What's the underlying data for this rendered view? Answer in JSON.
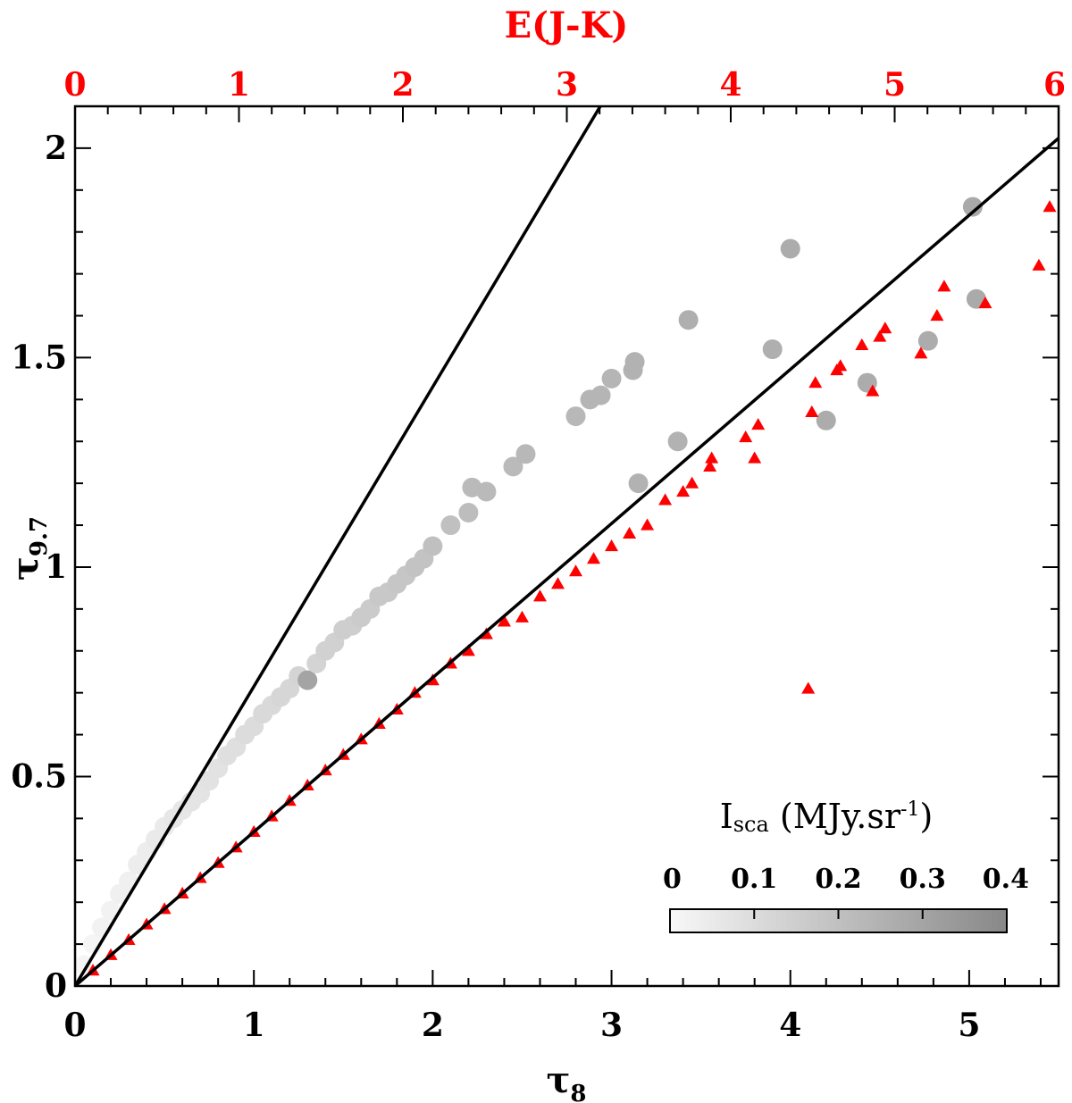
{
  "chart_data": {
    "type": "scatter",
    "title": "",
    "xlabel": {
      "main": "τ",
      "sub": "8"
    },
    "ylabel": {
      "main": "τ",
      "sub": "9.7"
    },
    "top_xlabel": "E(J-K)",
    "xlim": [
      0,
      5.5
    ],
    "ylim": [
      0,
      2.1
    ],
    "top_xlim": [
      0,
      6
    ],
    "x_ticks": [
      "0",
      "1",
      "2",
      "3",
      "4",
      "5"
    ],
    "y_ticks": [
      "0",
      "0.5",
      "1",
      "1.5",
      "2"
    ],
    "top_x_ticks": [
      "0",
      "1",
      "2",
      "3",
      "4",
      "5",
      "6"
    ],
    "colors": {
      "axis": "#000000",
      "top_axis": "#ff0000",
      "triangles": "#ff0000",
      "lines": "#000000"
    },
    "lines": [
      {
        "name": "steep-line",
        "slope": 0.715
      },
      {
        "name": "shallow-line",
        "slope": 0.368
      }
    ],
    "colorbar": {
      "title_main": "I",
      "title_sub": "sca",
      "title_unit_prefix": " (MJy.sr",
      "title_unit_sup": "-1",
      "title_unit_suffix": ")",
      "ticks": [
        "0",
        "0.1",
        "0.2",
        "0.3",
        "0.4"
      ],
      "range": [
        0,
        0.4
      ]
    },
    "series": [
      {
        "name": "grey circles (colored by Isca)",
        "marker": "circle",
        "points": [
          [
            0.05,
            0.05,
            0.01
          ],
          [
            0.1,
            0.1,
            0.01
          ],
          [
            0.15,
            0.14,
            0.02
          ],
          [
            0.2,
            0.18,
            0.02
          ],
          [
            0.25,
            0.22,
            0.03
          ],
          [
            0.3,
            0.25,
            0.03
          ],
          [
            0.35,
            0.29,
            0.04
          ],
          [
            0.4,
            0.32,
            0.04
          ],
          [
            0.45,
            0.35,
            0.05
          ],
          [
            0.5,
            0.38,
            0.05
          ],
          [
            0.55,
            0.4,
            0.06
          ],
          [
            0.6,
            0.42,
            0.06
          ],
          [
            0.65,
            0.44,
            0.07
          ],
          [
            0.7,
            0.46,
            0.07
          ],
          [
            0.75,
            0.49,
            0.08
          ],
          [
            0.8,
            0.52,
            0.08
          ],
          [
            0.85,
            0.55,
            0.09
          ],
          [
            0.9,
            0.57,
            0.09
          ],
          [
            0.95,
            0.6,
            0.1
          ],
          [
            1.0,
            0.62,
            0.1
          ],
          [
            1.05,
            0.65,
            0.11
          ],
          [
            1.1,
            0.67,
            0.11
          ],
          [
            1.15,
            0.69,
            0.12
          ],
          [
            1.2,
            0.71,
            0.12
          ],
          [
            1.25,
            0.74,
            0.13
          ],
          [
            1.3,
            0.73,
            0.3
          ],
          [
            1.35,
            0.77,
            0.13
          ],
          [
            1.4,
            0.8,
            0.14
          ],
          [
            1.45,
            0.82,
            0.14
          ],
          [
            1.5,
            0.85,
            0.15
          ],
          [
            1.55,
            0.86,
            0.15
          ],
          [
            1.6,
            0.88,
            0.16
          ],
          [
            1.65,
            0.9,
            0.16
          ],
          [
            1.7,
            0.93,
            0.17
          ],
          [
            1.75,
            0.94,
            0.17
          ],
          [
            1.8,
            0.96,
            0.18
          ],
          [
            1.85,
            0.98,
            0.18
          ],
          [
            1.9,
            1.0,
            0.19
          ],
          [
            1.95,
            1.02,
            0.19
          ],
          [
            2.0,
            1.05,
            0.2
          ],
          [
            2.1,
            1.1,
            0.2
          ],
          [
            2.2,
            1.13,
            0.21
          ],
          [
            2.22,
            1.19,
            0.22
          ],
          [
            2.3,
            1.18,
            0.22
          ],
          [
            2.45,
            1.24,
            0.22
          ],
          [
            2.52,
            1.27,
            0.23
          ],
          [
            2.8,
            1.36,
            0.23
          ],
          [
            2.88,
            1.4,
            0.24
          ],
          [
            2.94,
            1.41,
            0.24
          ],
          [
            3.0,
            1.45,
            0.24
          ],
          [
            3.12,
            1.47,
            0.25
          ],
          [
            3.13,
            1.49,
            0.25
          ],
          [
            3.15,
            1.2,
            0.25
          ],
          [
            3.37,
            1.3,
            0.25
          ],
          [
            3.43,
            1.59,
            0.26
          ],
          [
            3.9,
            1.52,
            0.26
          ],
          [
            4.0,
            1.76,
            0.27
          ],
          [
            4.2,
            1.35,
            0.27
          ],
          [
            4.43,
            1.44,
            0.27
          ],
          [
            4.77,
            1.54,
            0.27
          ],
          [
            5.02,
            1.86,
            0.28
          ],
          [
            5.04,
            1.64,
            0.28
          ]
        ]
      },
      {
        "name": "red triangles",
        "marker": "triangle",
        "points": [
          [
            0.1,
            0.037
          ],
          [
            0.2,
            0.074
          ],
          [
            0.3,
            0.11
          ],
          [
            0.4,
            0.147
          ],
          [
            0.5,
            0.184
          ],
          [
            0.6,
            0.221
          ],
          [
            0.7,
            0.258
          ],
          [
            0.8,
            0.294
          ],
          [
            0.9,
            0.331
          ],
          [
            1.0,
            0.368
          ],
          [
            1.1,
            0.405
          ],
          [
            1.2,
            0.442
          ],
          [
            1.3,
            0.479
          ],
          [
            1.4,
            0.515
          ],
          [
            1.5,
            0.552
          ],
          [
            1.6,
            0.589
          ],
          [
            1.7,
            0.626
          ],
          [
            1.8,
            0.66
          ],
          [
            1.9,
            0.7
          ],
          [
            2.0,
            0.73
          ],
          [
            2.1,
            0.77
          ],
          [
            2.2,
            0.8
          ],
          [
            2.3,
            0.84
          ],
          [
            2.4,
            0.87
          ],
          [
            2.5,
            0.88
          ],
          [
            2.6,
            0.93
          ],
          [
            2.7,
            0.96
          ],
          [
            2.8,
            0.99
          ],
          [
            2.9,
            1.02
          ],
          [
            3.0,
            1.05
          ],
          [
            3.1,
            1.08
          ],
          [
            3.2,
            1.1
          ],
          [
            3.3,
            1.16
          ],
          [
            3.4,
            1.18
          ],
          [
            3.45,
            1.2
          ],
          [
            3.55,
            1.24
          ],
          [
            3.56,
            1.26
          ],
          [
            3.75,
            1.31
          ],
          [
            3.8,
            1.26
          ],
          [
            3.82,
            1.34
          ],
          [
            4.1,
            0.71
          ],
          [
            4.12,
            1.37
          ],
          [
            4.14,
            1.44
          ],
          [
            4.26,
            1.47
          ],
          [
            4.28,
            1.48
          ],
          [
            4.4,
            1.53
          ],
          [
            4.46,
            1.42
          ],
          [
            4.5,
            1.55
          ],
          [
            4.53,
            1.57
          ],
          [
            4.73,
            1.51
          ],
          [
            4.82,
            1.6
          ],
          [
            4.86,
            1.67
          ],
          [
            5.09,
            1.63
          ],
          [
            5.39,
            1.72
          ],
          [
            5.45,
            1.86
          ]
        ]
      }
    ]
  }
}
